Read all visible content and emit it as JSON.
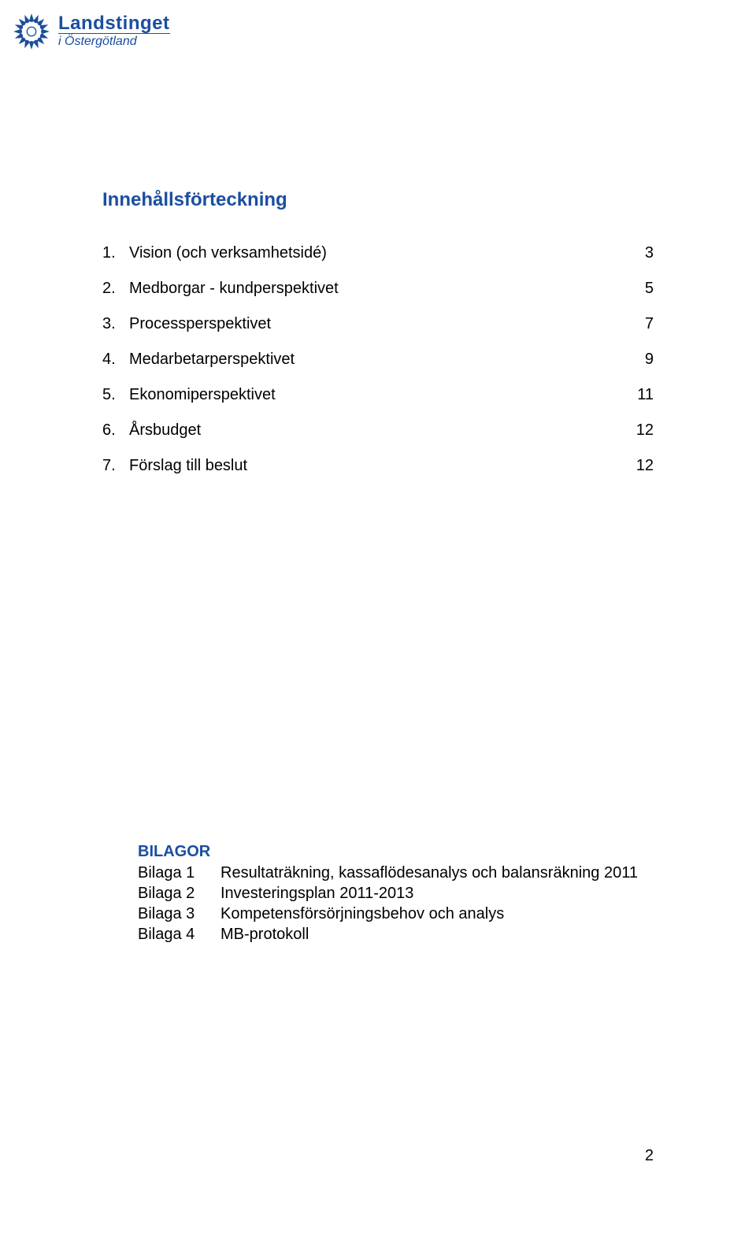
{
  "logo": {
    "main": "Landstinget",
    "sub": "i Östergötland",
    "icon_color": "#1a4ea0"
  },
  "toc": {
    "title": "Innehållsförteckning",
    "title_color": "#1a4ea0",
    "title_fontsize": 24,
    "item_fontsize": 20,
    "items": [
      {
        "num": "1.",
        "label": "Vision (och verksamhetsidé)",
        "page": "3"
      },
      {
        "num": "2.",
        "label": "Medborgar - kundperspektivet",
        "page": "5"
      },
      {
        "num": "3.",
        "label": "Processperspektivet",
        "page": "7"
      },
      {
        "num": "4.",
        "label": "Medarbetarperspektivet",
        "page": "9"
      },
      {
        "num": "5.",
        "label": "Ekonomiperspektivet",
        "page": "11"
      },
      {
        "num": "6.",
        "label": "Årsbudget",
        "page": "12"
      },
      {
        "num": "7.",
        "label": "Förslag till beslut",
        "page": "12"
      }
    ]
  },
  "bilagor": {
    "title": "BILAGOR",
    "title_color": "#1a4ea0",
    "items": [
      {
        "key": "Bilaga 1",
        "desc": "Resultaträkning, kassaflödesanalys och balansräkning 2011"
      },
      {
        "key": "Bilaga 2",
        "desc": "Investeringsplan 2011-2013"
      },
      {
        "key": "Bilaga 3",
        "desc": "Kompetensförsörjningsbehov och analys"
      },
      {
        "key": "Bilaga 4",
        "desc": "MB-protokoll"
      }
    ]
  },
  "page_number": "2",
  "colors": {
    "background": "#ffffff",
    "brand_blue": "#1a4ea0",
    "text": "#000000"
  }
}
